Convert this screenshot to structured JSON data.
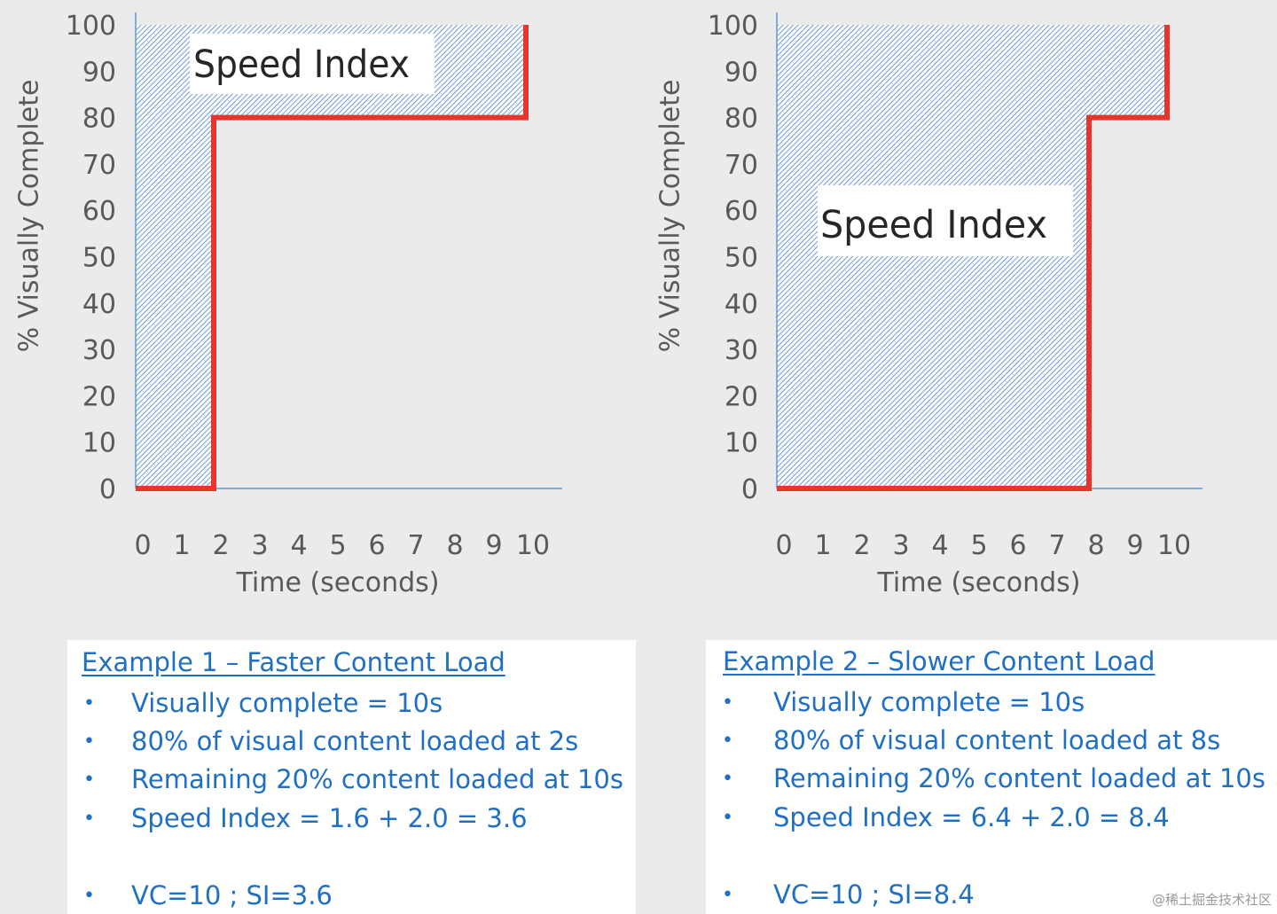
{
  "chart_data": [
    {
      "type": "line",
      "series": [
        {
          "x": [
            0,
            2,
            2,
            10,
            10
          ],
          "y": [
            0,
            0,
            80,
            80,
            100
          ]
        }
      ],
      "xlabel": "Time (seconds)",
      "ylabel": "% Visually Complete",
      "xticks": [
        "0",
        "1",
        "2",
        "3",
        "4",
        "5",
        "6",
        "7",
        "8",
        "9",
        "10"
      ],
      "yticks": [
        "0",
        "10",
        "20",
        "30",
        "40",
        "50",
        "60",
        "70",
        "80",
        "90",
        "100"
      ],
      "xlim": [
        0,
        10
      ],
      "ylim": [
        0,
        100
      ],
      "annotation": "Speed Index",
      "shaded_region": "above curve",
      "line_color": "#e8352c",
      "fill_color": "#4a7fd6",
      "axis_color": "#5b9bd5"
    },
    {
      "type": "line",
      "series": [
        {
          "x": [
            0,
            8,
            8,
            10,
            10
          ],
          "y": [
            0,
            0,
            80,
            80,
            100
          ]
        }
      ],
      "xlabel": "Time (seconds)",
      "ylabel": "% Visually Complete",
      "xticks": [
        "0",
        "1",
        "2",
        "3",
        "4",
        "5",
        "6",
        "7",
        "8",
        "9",
        "10"
      ],
      "yticks": [
        "0",
        "10",
        "20",
        "30",
        "40",
        "50",
        "60",
        "70",
        "80",
        "90",
        "100"
      ],
      "xlim": [
        0,
        10
      ],
      "ylim": [
        0,
        100
      ],
      "annotation": "Speed Index",
      "shaded_region": "above curve",
      "line_color": "#e8352c",
      "fill_color": "#4a7fd6",
      "axis_color": "#5b9bd5"
    }
  ],
  "examples": [
    {
      "heading": "Example 1 – Faster Content Load",
      "bullet": "•",
      "items": [
        "Visually complete = 10s",
        "80% of visual content loaded at 2s",
        "Remaining 20% content loaded at 10s",
        "Speed Index = 1.6 + 2.0 = 3.6"
      ],
      "summary": "VC=10 ; SI=3.6"
    },
    {
      "heading": "Example 2 – Slower Content Load",
      "bullet": "•",
      "items": [
        "Visually complete = 10s",
        "80% of visual content loaded at 8s",
        "Remaining 20% content loaded at 10s",
        "Speed Index = 6.4 + 2.0 = 8.4"
      ],
      "summary": "VC=10 ; SI=8.4"
    }
  ],
  "watermark": "@稀土掘金技术社区",
  "colors": {
    "text_blue": "#1f6fc5",
    "tick_text": "#595959",
    "background": "#ebebeb"
  }
}
